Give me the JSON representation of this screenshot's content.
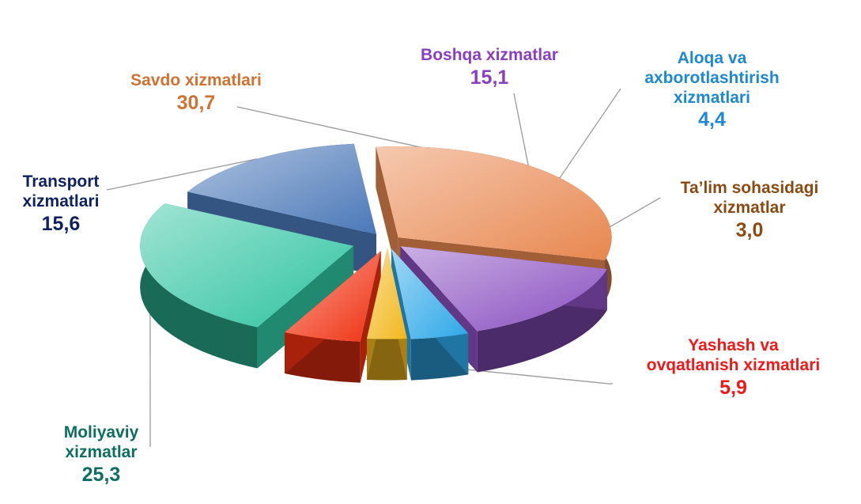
{
  "chart_data": {
    "type": "pie",
    "title": "",
    "slices": [
      {
        "name": "Savdo xizmatlari",
        "value_label": "30,7",
        "value": 30.7,
        "color": "#E8874F",
        "text_color": "#D07232"
      },
      {
        "name": "Boshqa xizmatlar",
        "value_label": "15,1",
        "value": 15.1,
        "color": "#8A4FC0",
        "text_color": "#8A3FC0"
      },
      {
        "name": "Aloqa va\naxborotlashtirish\nxizmatlari",
        "value_label": "4,4",
        "value": 4.4,
        "color": "#2EA8E8",
        "text_color": "#1E88D0"
      },
      {
        "name": "Ta’lim sohasidagi\nxizmatlar",
        "value_label": "3,0",
        "value": 3.0,
        "color": "#F2B71C",
        "text_color": "#8B4A12"
      },
      {
        "name": "Yashash va\novqatlanish xizmatlari",
        "value_label": "5,9",
        "value": 5.9,
        "color": "#F03010",
        "text_color": "#F01818"
      },
      {
        "name": "Moliyaviy\nxizmatlar",
        "value_label": "25,3",
        "value": 25.3,
        "color": "#2EC3A0",
        "text_color": "#0E6E62"
      },
      {
        "name": "Transport\nxizmatlari",
        "value_label": "15,6",
        "value": 15.6,
        "color": "#4A78B8",
        "text_color": "#10225E"
      }
    ]
  }
}
